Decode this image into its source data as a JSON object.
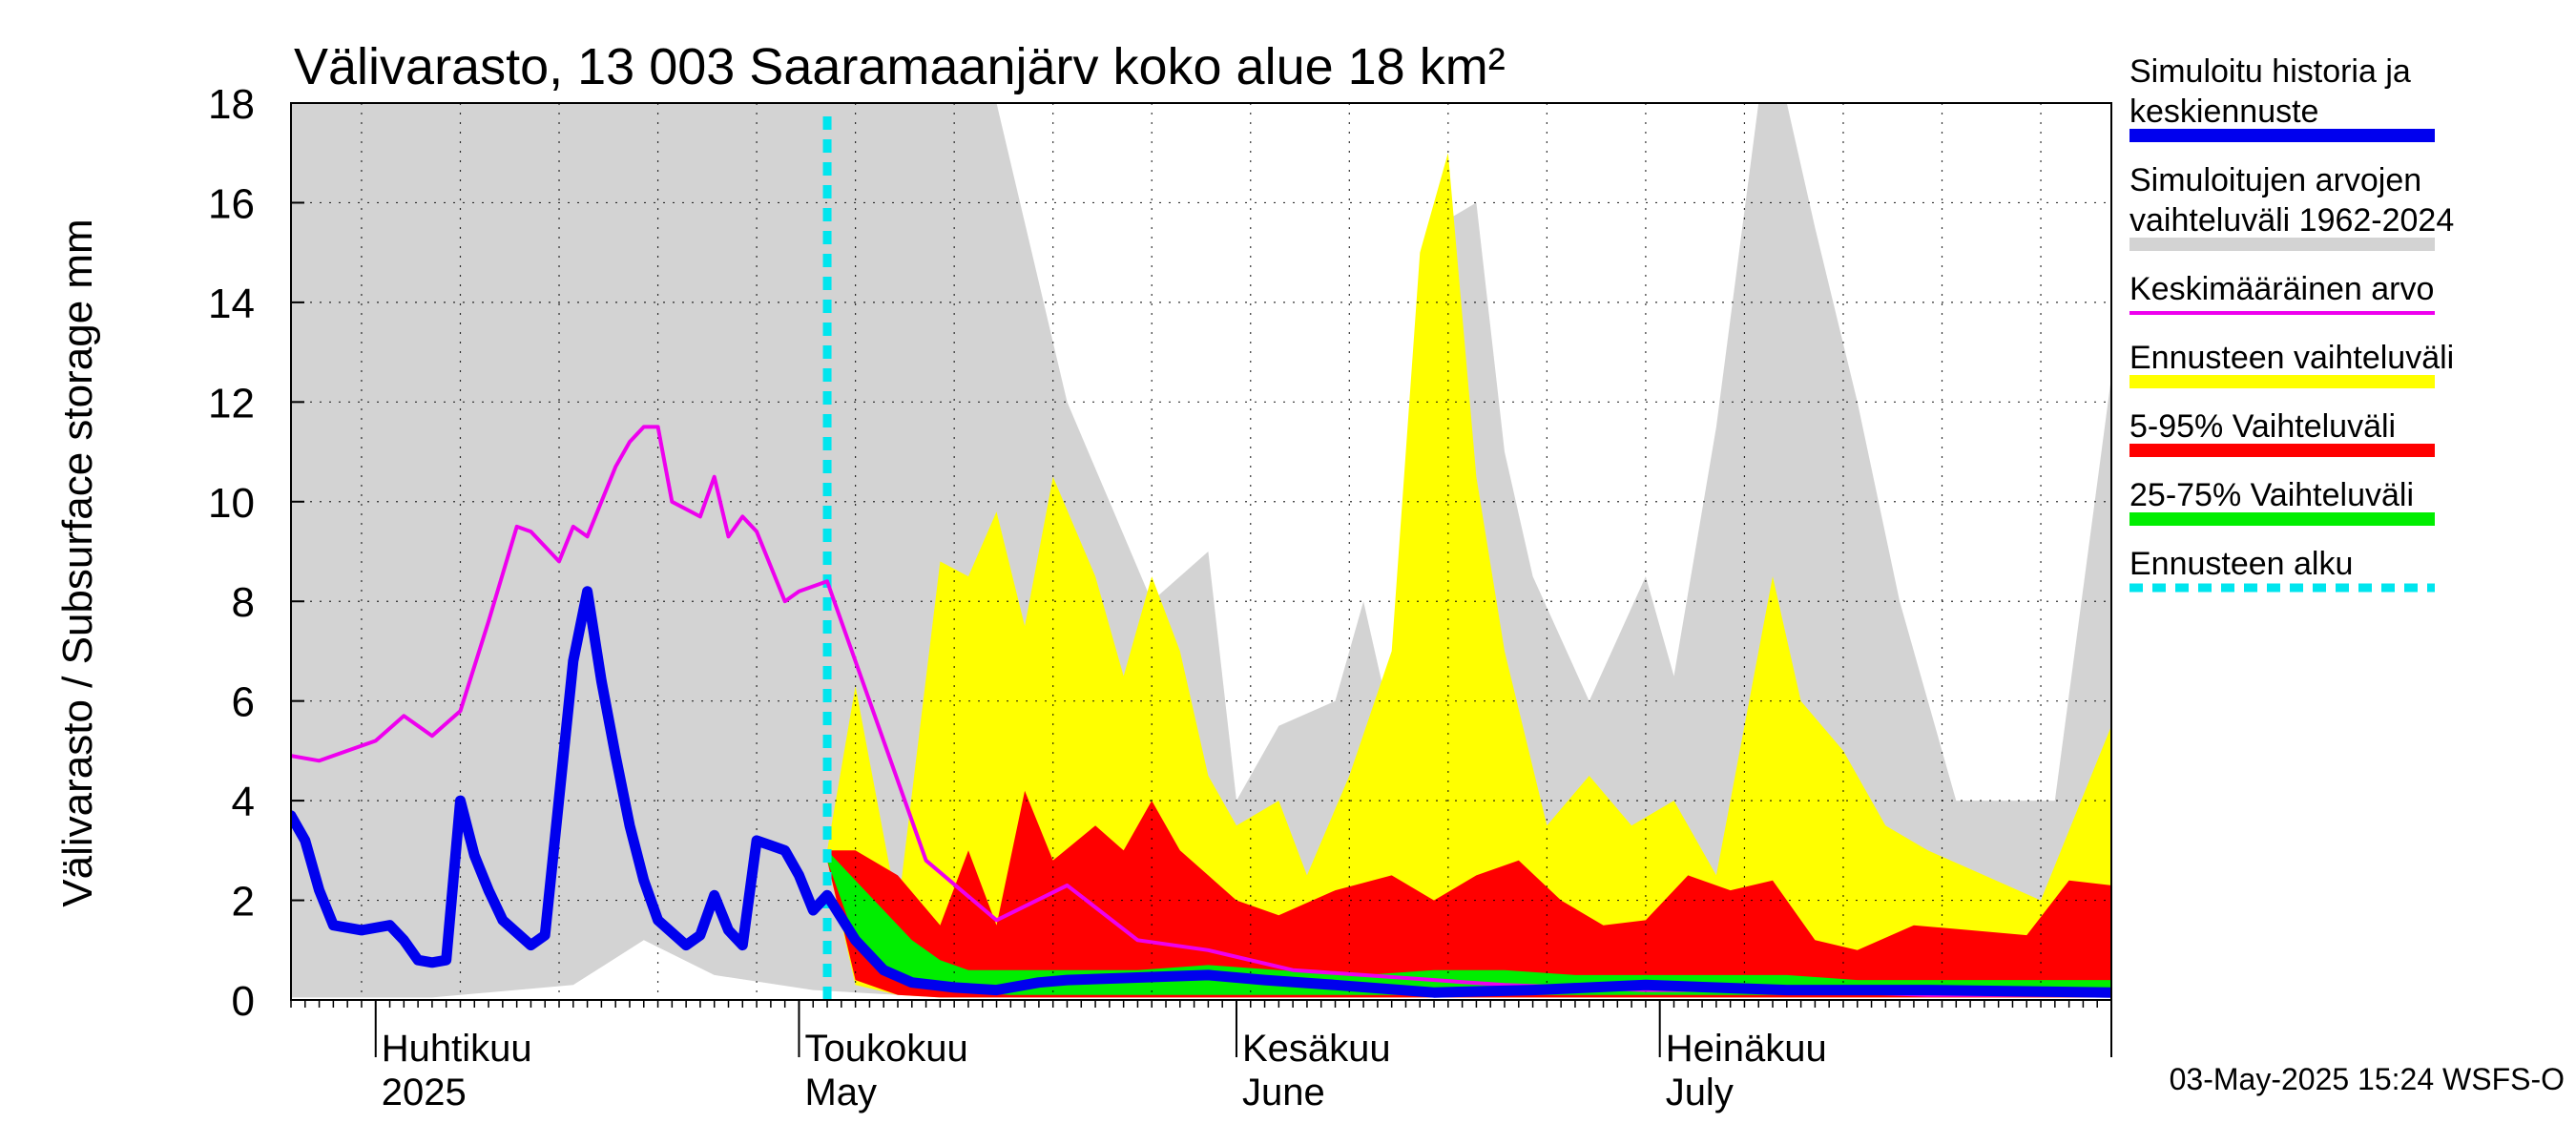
{
  "chart_data": {
    "type": "area",
    "title": "Välivarasto, 13 003 Saaramaanjärv koko alue 18 km²",
    "ylabel": "Välivarasto / Subsurface storage  mm",
    "ylim": [
      0,
      18
    ],
    "yticks": [
      "0",
      "2",
      "4",
      "6",
      "8",
      "10",
      "12",
      "14",
      "16",
      "18"
    ],
    "xlim": [
      "2025-03-26",
      "2025-08-02"
    ],
    "month_labels": [
      {
        "date": "2025-04-01",
        "line1": "Huhtikuu",
        "line2": "2025"
      },
      {
        "date": "2025-05-01",
        "line1": "Toukokuu",
        "line2": "May"
      },
      {
        "date": "2025-06-01",
        "line1": "Kesäkuu",
        "line2": "June"
      },
      {
        "date": "2025-07-01",
        "line1": "Heinäkuu",
        "line2": "July"
      }
    ],
    "forecast_start": "2025-05-03",
    "colors": {
      "history": "#0000ee",
      "range": "#d3d3d3",
      "mean": "#ee00ee",
      "forecast_range": "#ffff00",
      "p5_95": "#ff0000",
      "p25_75": "#00ee00",
      "forecast_start": "#00e5ee"
    },
    "series": [
      {
        "name": "Simuloitujen arvojen vaihteluväli 1962-2024",
        "role": "range",
        "x": [
          "2025-03-26",
          "2025-04-05",
          "2025-04-15",
          "2025-04-20",
          "2025-04-25",
          "2025-05-02",
          "2025-05-08",
          "2025-05-15",
          "2025-05-20",
          "2025-05-23",
          "2025-05-26",
          "2025-05-30",
          "2025-06-01",
          "2025-06-04",
          "2025-06-08",
          "2025-06-10",
          "2025-06-12",
          "2025-06-15",
          "2025-06-18",
          "2025-06-20",
          "2025-06-22",
          "2025-06-26",
          "2025-06-30",
          "2025-07-02",
          "2025-07-05",
          "2025-07-08",
          "2025-07-10",
          "2025-07-12",
          "2025-07-15",
          "2025-07-18",
          "2025-07-22",
          "2025-07-26",
          "2025-07-29",
          "2025-08-02"
        ],
        "upper": [
          18,
          18,
          18,
          18,
          18,
          18,
          18,
          18,
          12,
          10,
          8,
          9,
          4,
          5.5,
          6,
          8,
          5.5,
          15.5,
          16,
          11,
          8.5,
          6,
          8.5,
          6.5,
          11.5,
          18,
          18,
          15.5,
          12,
          8,
          4,
          4,
          4,
          12.5
        ],
        "lower": [
          0.05,
          0.05,
          0.3,
          1.2,
          0.5,
          0.2,
          0.1,
          0.1,
          0.1,
          0.1,
          0.1,
          0.1,
          0.1,
          0.1,
          0.1,
          0.1,
          0.1,
          0.1,
          0.1,
          0.1,
          0.1,
          0.1,
          0.1,
          0.1,
          0.1,
          0.1,
          0.1,
          0.1,
          0.1,
          0.1,
          0.1,
          0.1,
          0.1,
          0.1
        ]
      },
      {
        "name": "Ennusteen vaihteluväli",
        "role": "forecast_range",
        "x": [
          "2025-05-03",
          "2025-05-05",
          "2025-05-08",
          "2025-05-11",
          "2025-05-13",
          "2025-05-15",
          "2025-05-17",
          "2025-05-19",
          "2025-05-22",
          "2025-05-24",
          "2025-05-26",
          "2025-05-28",
          "2025-05-30",
          "2025-06-01",
          "2025-06-04",
          "2025-06-06",
          "2025-06-09",
          "2025-06-12",
          "2025-06-14",
          "2025-06-16",
          "2025-06-18",
          "2025-06-20",
          "2025-06-23",
          "2025-06-26",
          "2025-06-29",
          "2025-07-02",
          "2025-07-05",
          "2025-07-09",
          "2025-07-11",
          "2025-07-14",
          "2025-07-17",
          "2025-07-20",
          "2025-07-24",
          "2025-07-28",
          "2025-08-02"
        ],
        "upper": [
          3,
          6.3,
          1.8,
          8.8,
          8.5,
          9.8,
          7.5,
          10.5,
          8.5,
          6.5,
          8.5,
          7,
          4.5,
          3.5,
          4,
          2.5,
          4.5,
          7,
          15,
          17,
          10.5,
          7,
          3.5,
          4.5,
          3.5,
          4,
          2.5,
          8.5,
          6,
          5,
          3.5,
          3,
          2.5,
          2,
          5.5
        ],
        "lower": [
          2.8,
          0.3,
          0.1,
          0.05,
          0.05,
          0.05,
          0.05,
          0.05,
          0.05,
          0.05,
          0.05,
          0.05,
          0.05,
          0.05,
          0.05,
          0.05,
          0.05,
          0.05,
          0.05,
          0.05,
          0.05,
          0.05,
          0.05,
          0.05,
          0.05,
          0.05,
          0.05,
          0.05,
          0.05,
          0.05,
          0.05,
          0.05,
          0.05,
          0.05,
          0.05
        ]
      },
      {
        "name": "5-95% Vaihteluväli",
        "role": "p5_95",
        "x": [
          "2025-05-03",
          "2025-05-05",
          "2025-05-08",
          "2025-05-11",
          "2025-05-13",
          "2025-05-15",
          "2025-05-17",
          "2025-05-19",
          "2025-05-22",
          "2025-05-24",
          "2025-05-26",
          "2025-05-28",
          "2025-05-30",
          "2025-06-01",
          "2025-06-04",
          "2025-06-08",
          "2025-06-12",
          "2025-06-15",
          "2025-06-18",
          "2025-06-21",
          "2025-06-24",
          "2025-06-27",
          "2025-06-30",
          "2025-07-03",
          "2025-07-06",
          "2025-07-09",
          "2025-07-12",
          "2025-07-15",
          "2025-07-19",
          "2025-07-23",
          "2025-07-27",
          "2025-07-30",
          "2025-08-02"
        ],
        "upper": [
          3,
          3,
          2.5,
          1.5,
          3,
          1.5,
          4.2,
          2.8,
          3.5,
          3,
          4,
          3,
          2.5,
          2,
          1.7,
          2.2,
          2.5,
          2,
          2.5,
          2.8,
          2,
          1.5,
          1.6,
          2.5,
          2.2,
          2.4,
          1.2,
          1,
          1.5,
          1.4,
          1.3,
          2.4,
          2.3
        ],
        "lower": [
          2.8,
          0.4,
          0.1,
          0.05,
          0.05,
          0.05,
          0.05,
          0.05,
          0.05,
          0.05,
          0.05,
          0.05,
          0.05,
          0.05,
          0.05,
          0.05,
          0.05,
          0.05,
          0.05,
          0.05,
          0.05,
          0.05,
          0.05,
          0.05,
          0.05,
          0.05,
          0.05,
          0.05,
          0.05,
          0.05,
          0.05,
          0.05,
          0.05
        ]
      },
      {
        "name": "25-75% Vaihteluväli",
        "role": "p25_75",
        "x": [
          "2025-05-03",
          "2025-05-05",
          "2025-05-07",
          "2025-05-09",
          "2025-05-11",
          "2025-05-13",
          "2025-05-16",
          "2025-05-20",
          "2025-05-25",
          "2025-05-30",
          "2025-06-04",
          "2025-06-10",
          "2025-06-15",
          "2025-06-20",
          "2025-06-25",
          "2025-06-30",
          "2025-07-05",
          "2025-07-10",
          "2025-07-15",
          "2025-07-20",
          "2025-07-25",
          "2025-08-02"
        ],
        "upper": [
          3,
          2.4,
          1.8,
          1.2,
          0.8,
          0.6,
          0.6,
          0.6,
          0.6,
          0.7,
          0.6,
          0.5,
          0.6,
          0.6,
          0.5,
          0.5,
          0.5,
          0.5,
          0.4,
          0.4,
          0.4,
          0.4
        ],
        "lower": [
          2.8,
          1.2,
          0.6,
          0.3,
          0.2,
          0.15,
          0.1,
          0.1,
          0.1,
          0.1,
          0.1,
          0.1,
          0.1,
          0.1,
          0.1,
          0.1,
          0.1,
          0.1,
          0.1,
          0.1,
          0.1,
          0.1
        ]
      },
      {
        "name": "Keskimääräinen arvo",
        "role": "mean",
        "x": [
          "2025-03-26",
          "2025-03-28",
          "2025-04-01",
          "2025-04-03",
          "2025-04-05",
          "2025-04-07",
          "2025-04-09",
          "2025-04-11",
          "2025-04-12",
          "2025-04-14",
          "2025-04-15",
          "2025-04-16",
          "2025-04-18",
          "2025-04-19",
          "2025-04-20",
          "2025-04-21",
          "2025-04-22",
          "2025-04-24",
          "2025-04-25",
          "2025-04-26",
          "2025-04-27",
          "2025-04-28",
          "2025-04-30",
          "2025-05-01",
          "2025-05-03",
          "2025-05-06",
          "2025-05-10",
          "2025-05-15",
          "2025-05-20",
          "2025-05-25",
          "2025-05-30",
          "2025-06-05",
          "2025-06-10",
          "2025-06-20",
          "2025-06-30",
          "2025-07-10",
          "2025-07-20",
          "2025-08-02"
        ],
        "values": [
          4.9,
          4.8,
          5.2,
          5.7,
          5.3,
          5.8,
          7.6,
          9.5,
          9.4,
          8.8,
          9.5,
          9.3,
          10.7,
          11.2,
          11.5,
          11.5,
          10,
          9.7,
          10.5,
          9.3,
          9.7,
          9.4,
          8,
          8.2,
          8.4,
          6,
          2.8,
          1.6,
          2.3,
          1.2,
          1,
          0.6,
          0.5,
          0.3,
          0.2,
          0.2,
          0.1,
          0.1
        ]
      },
      {
        "name": "Simuloitu historia ja keskiennuste",
        "role": "history",
        "x": [
          "2025-03-26",
          "2025-03-27",
          "2025-03-28",
          "2025-03-29",
          "2025-03-31",
          "2025-04-02",
          "2025-04-03",
          "2025-04-04",
          "2025-04-05",
          "2025-04-06",
          "2025-04-07",
          "2025-04-08",
          "2025-04-09",
          "2025-04-10",
          "2025-04-12",
          "2025-04-13",
          "2025-04-15",
          "2025-04-16",
          "2025-04-17",
          "2025-04-18",
          "2025-04-19",
          "2025-04-20",
          "2025-04-21",
          "2025-04-23",
          "2025-04-24",
          "2025-04-25",
          "2025-04-26",
          "2025-04-27",
          "2025-04-28",
          "2025-04-29",
          "2025-04-30",
          "2025-05-01",
          "2025-05-02",
          "2025-05-03",
          "2025-05-05",
          "2025-05-07",
          "2025-05-09",
          "2025-05-12",
          "2025-05-15",
          "2025-05-18",
          "2025-05-20",
          "2025-05-25",
          "2025-05-30",
          "2025-06-03",
          "2025-06-08",
          "2025-06-15",
          "2025-06-22",
          "2025-06-30",
          "2025-07-10",
          "2025-07-20",
          "2025-08-02"
        ],
        "values": [
          3.7,
          3.2,
          2.2,
          1.5,
          1.4,
          1.5,
          1.2,
          0.8,
          0.75,
          0.8,
          4,
          2.9,
          2.2,
          1.6,
          1.1,
          1.3,
          6.8,
          8.2,
          6.4,
          4.9,
          3.5,
          2.4,
          1.6,
          1.1,
          1.3,
          2.1,
          1.4,
          1.1,
          3.2,
          3.1,
          3,
          2.5,
          1.8,
          2.1,
          1.2,
          0.6,
          0.35,
          0.25,
          0.2,
          0.35,
          0.4,
          0.45,
          0.5,
          0.4,
          0.3,
          0.15,
          0.2,
          0.3,
          0.2,
          0.2,
          0.15
        ]
      }
    ]
  },
  "legend": [
    {
      "key": "history",
      "lines": [
        "Simuloitu historia ja",
        "keskiennuste"
      ],
      "style": "thick"
    },
    {
      "key": "range",
      "lines": [
        "Simuloitujen arvojen",
        "vaihteluväli 1962-2024"
      ],
      "style": "thick"
    },
    {
      "key": "mean",
      "lines": [
        "Keskimääräinen arvo"
      ],
      "style": "thin"
    },
    {
      "key": "forecast_range",
      "lines": [
        "Ennusteen vaihteluväli"
      ],
      "style": "thick"
    },
    {
      "key": "p5_95",
      "lines": [
        "5-95% Vaihteluväli"
      ],
      "style": "thick"
    },
    {
      "key": "p25_75",
      "lines": [
        "25-75% Vaihteluväli"
      ],
      "style": "thick"
    },
    {
      "key": "forecast_start",
      "lines": [
        "Ennusteen alku"
      ],
      "style": "dashed"
    }
  ],
  "footer": "03-May-2025 15:24 WSFS-O"
}
